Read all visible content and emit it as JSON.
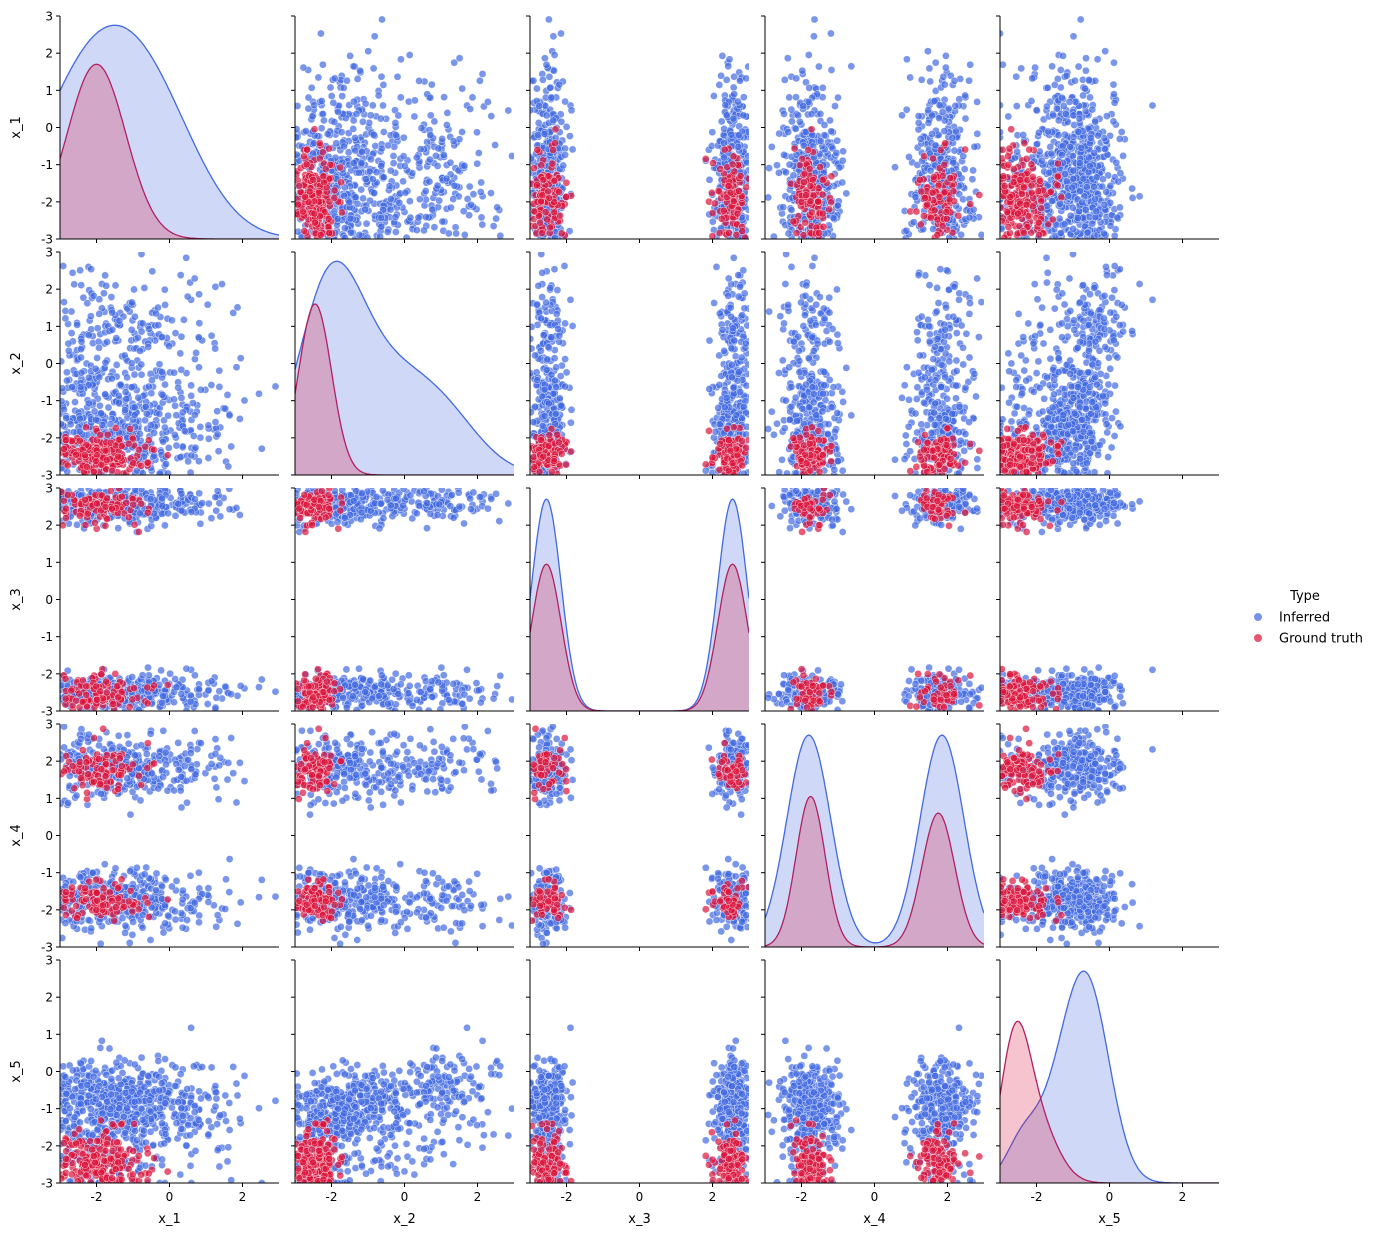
{
  "chart_data": {
    "type": "scatter",
    "title": "",
    "variables": [
      "x_1",
      "x_2",
      "x_3",
      "x_4",
      "x_5"
    ],
    "axis_range": [
      -3,
      3
    ],
    "ticks": [
      -3,
      -2,
      -1,
      0,
      1,
      2,
      3
    ],
    "x_tick_labels": [
      "-2",
      "0",
      "2"
    ],
    "y_tick_labels": [
      "-3",
      "-2",
      "-1",
      "0",
      "1",
      "2",
      "3"
    ],
    "grid": false,
    "diagonal": "kde",
    "legend": {
      "title": "Type",
      "placement": "right",
      "entries": [
        {
          "label": "Inferred",
          "color": "#4169e1"
        },
        {
          "label": "Ground truth",
          "color": "#dc143c"
        }
      ]
    },
    "series": [
      {
        "name": "Inferred",
        "color": "#4169e1",
        "n_points": 700,
        "marginals": [
          {
            "var": "x_1",
            "modes": [
              [
                -2.4,
                1.2
              ],
              [
                -0.6,
                1.2
              ]
            ],
            "weights": [
              0.5,
              0.5
            ],
            "range": [
              -3,
              3
            ]
          },
          {
            "var": "x_2",
            "modes": [
              [
                -2.1,
                0.7
              ],
              [
                -0.8,
                1.0
              ],
              [
                1.0,
                0.9
              ]
            ],
            "weights": [
              0.45,
              0.35,
              0.2
            ],
            "range": [
              -3,
              3
            ]
          },
          {
            "var": "x_3",
            "modes": [
              [
                -2.55,
                0.25
              ],
              [
                2.55,
                0.25
              ]
            ],
            "weights": [
              0.5,
              0.5
            ],
            "range": [
              -3,
              3
            ]
          },
          {
            "var": "x_4",
            "modes": [
              [
                -1.8,
                0.45
              ],
              [
                1.85,
                0.45
              ]
            ],
            "weights": [
              0.5,
              0.5
            ],
            "range": [
              -3,
              3
            ]
          },
          {
            "var": "x_5",
            "modes": [
              [
                -0.55,
                0.45
              ],
              [
                -1.3,
                0.5
              ],
              [
                -2.4,
                0.3
              ]
            ],
            "weights": [
              0.6,
              0.3,
              0.1
            ],
            "range": [
              -3,
              3
            ]
          }
        ],
        "kde_peaks": [
          2.75,
          2.75,
          2.7,
          2.7,
          2.7
        ]
      },
      {
        "name": "Ground truth",
        "color": "#dc143c",
        "n_points": 200,
        "marginals": [
          {
            "var": "x_1",
            "modes": [
              [
                -2.0,
                0.65
              ]
            ],
            "weights": [
              1.0
            ],
            "range": [
              -3,
              3
            ]
          },
          {
            "var": "x_2",
            "modes": [
              [
                -2.45,
                0.3
              ]
            ],
            "weights": [
              1.0
            ],
            "range": [
              -3,
              3
            ]
          },
          {
            "var": "x_3",
            "modes": [
              [
                -2.55,
                0.25
              ],
              [
                2.55,
                0.25
              ]
            ],
            "weights": [
              0.5,
              0.5
            ],
            "range": [
              -3,
              3
            ]
          },
          {
            "var": "x_4",
            "modes": [
              [
                -1.75,
                0.25
              ],
              [
                1.75,
                0.3
              ]
            ],
            "weights": [
              0.5,
              0.5
            ],
            "range": [
              -3,
              3
            ]
          },
          {
            "var": "x_5",
            "modes": [
              [
                -2.6,
                0.25
              ],
              [
                -2.0,
                0.4
              ]
            ],
            "weights": [
              0.6,
              0.4
            ],
            "range": [
              -3,
              3
            ]
          }
        ],
        "kde_peaks": [
          1.7,
          1.6,
          0.95,
          1.05,
          1.35
        ]
      }
    ]
  }
}
